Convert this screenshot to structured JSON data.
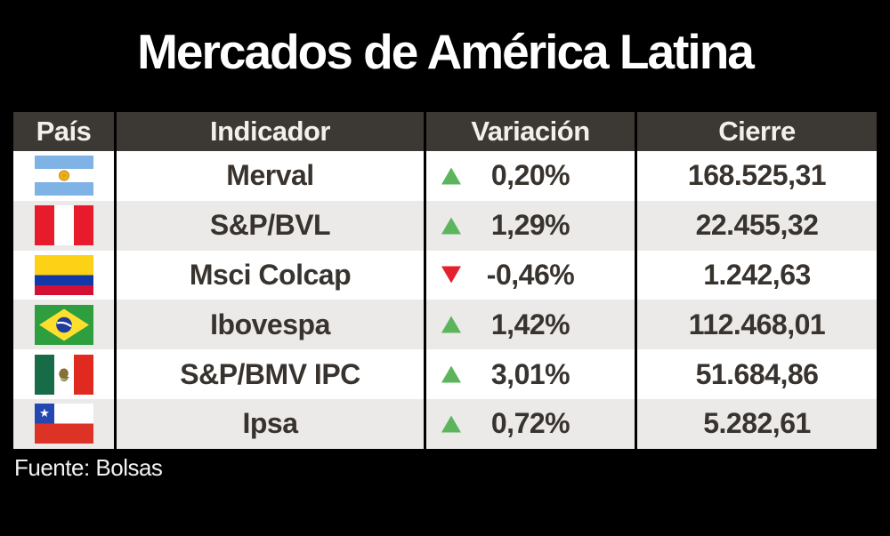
{
  "title": "Mercados de América Latina",
  "source_note": "Fuente: Bolsas",
  "table": {
    "headers": [
      "País",
      "Indicador",
      "Variación",
      "Cierre"
    ],
    "rows": [
      {
        "flag": "argentina",
        "indicator": "Merval",
        "direction": "up",
        "variation": "0,20%",
        "close": "168.525,31"
      },
      {
        "flag": "peru",
        "indicator": "S&P/BVL",
        "direction": "up",
        "variation": "1,29%",
        "close": "22.455,32"
      },
      {
        "flag": "colombia",
        "indicator": "Msci Colcap",
        "direction": "down",
        "variation": "-0,46%",
        "close": "1.242,63"
      },
      {
        "flag": "brazil",
        "indicator": "Ibovespa",
        "direction": "up",
        "variation": "1,42%",
        "close": "112.468,01"
      },
      {
        "flag": "mexico",
        "indicator": "S&P/BMV IPC",
        "direction": "up",
        "variation": "3,01%",
        "close": "51.684,86"
      },
      {
        "flag": "chile",
        "indicator": "Ipsa",
        "direction": "up",
        "variation": "0,72%",
        "close": "5.282,61"
      }
    ]
  },
  "colors": {
    "background": "#000000",
    "title-text": "#ffffff",
    "header-bg": "#3c3833",
    "header-text": "#f2f0ed",
    "row-bg": "#ffffff",
    "row-alt-bg": "#ebeae8",
    "cell-text": "#38332e",
    "up": "#5cb55d",
    "down": "#e4222d",
    "divider": "#000000",
    "source-text": "#f4f2f0"
  },
  "chart_data": {
    "type": "table",
    "title": "Mercados de América Latina",
    "columns": [
      "País",
      "Indicador",
      "Variación",
      "Cierre"
    ],
    "rows": [
      [
        "Argentina",
        "Merval",
        "▲ 0,20%",
        "168.525,31"
      ],
      [
        "Perú",
        "S&P/BVL",
        "▲ 1,29%",
        "22.455,32"
      ],
      [
        "Colombia",
        "Msci Colcap",
        "▼ -0,46%",
        "1.242,63"
      ],
      [
        "Brasil",
        "Ibovespa",
        "▲ 1,42%",
        "112.468,01"
      ],
      [
        "México",
        "S&P/BMV IPC",
        "▲ 3,01%",
        "51.684,86"
      ],
      [
        "Chile",
        "Ipsa",
        "▲ 0,72%",
        "5.282,61"
      ]
    ],
    "variation_values_pct": [
      0.2,
      1.29,
      -0.46,
      1.42,
      3.01,
      0.72
    ],
    "close_values": [
      168525.31,
      22455.32,
      1242.63,
      112468.01,
      51684.86,
      5282.61
    ],
    "source": "Fuente: Bolsas"
  }
}
